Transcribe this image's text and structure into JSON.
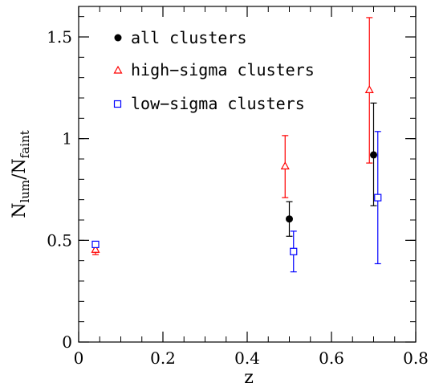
{
  "chart_data": {
    "type": "scatter",
    "xlabel": "z",
    "ylabel_main": "N",
    "ylabel_sub1": "lum",
    "ylabel_slash": "/N",
    "ylabel_sub2": "faint",
    "xlim": [
      0,
      0.8
    ],
    "ylim": [
      0,
      1.65
    ],
    "x_major_ticks": [
      0,
      0.2,
      0.4,
      0.6,
      0.8
    ],
    "x_tick_labels": [
      "0",
      "0.2",
      "0.4",
      "0.6",
      "0.8"
    ],
    "x_minor_step": 0.05,
    "y_major_ticks": [
      0,
      0.5,
      1,
      1.5
    ],
    "y_tick_labels": [
      "0",
      "0.5",
      "1",
      "1.5"
    ],
    "y_minor_step": 0.1,
    "grid": false,
    "legend_position": "top-left",
    "series": [
      {
        "name": "all clusters",
        "marker": "filled-circle",
        "color": "#000000",
        "points": [
          {
            "x": 0.04,
            "y": 0.475,
            "yerr_low": 0.465,
            "yerr_high": 0.485
          },
          {
            "x": 0.5,
            "y": 0.605,
            "yerr_low": 0.52,
            "yerr_high": 0.69
          },
          {
            "x": 0.7,
            "y": 0.92,
            "yerr_low": 0.67,
            "yerr_high": 1.175
          }
        ]
      },
      {
        "name": "high−sigma clusters",
        "marker": "open-triangle",
        "color": "#ff0000",
        "points": [
          {
            "x": 0.04,
            "y": 0.455,
            "yerr_low": 0.43,
            "yerr_high": 0.475
          },
          {
            "x": 0.49,
            "y": 0.865,
            "yerr_low": 0.71,
            "yerr_high": 1.015
          },
          {
            "x": 0.69,
            "y": 1.24,
            "yerr_low": 0.88,
            "yerr_high": 1.595
          }
        ]
      },
      {
        "name": "low−sigma clusters",
        "marker": "open-square",
        "color": "#0000ff",
        "points": [
          {
            "x": 0.04,
            "y": 0.48,
            "yerr_low": 0.47,
            "yerr_high": 0.49
          },
          {
            "x": 0.51,
            "y": 0.445,
            "yerr_low": 0.345,
            "yerr_high": 0.545
          },
          {
            "x": 0.71,
            "y": 0.71,
            "yerr_low": 0.385,
            "yerr_high": 1.035
          }
        ]
      }
    ]
  }
}
